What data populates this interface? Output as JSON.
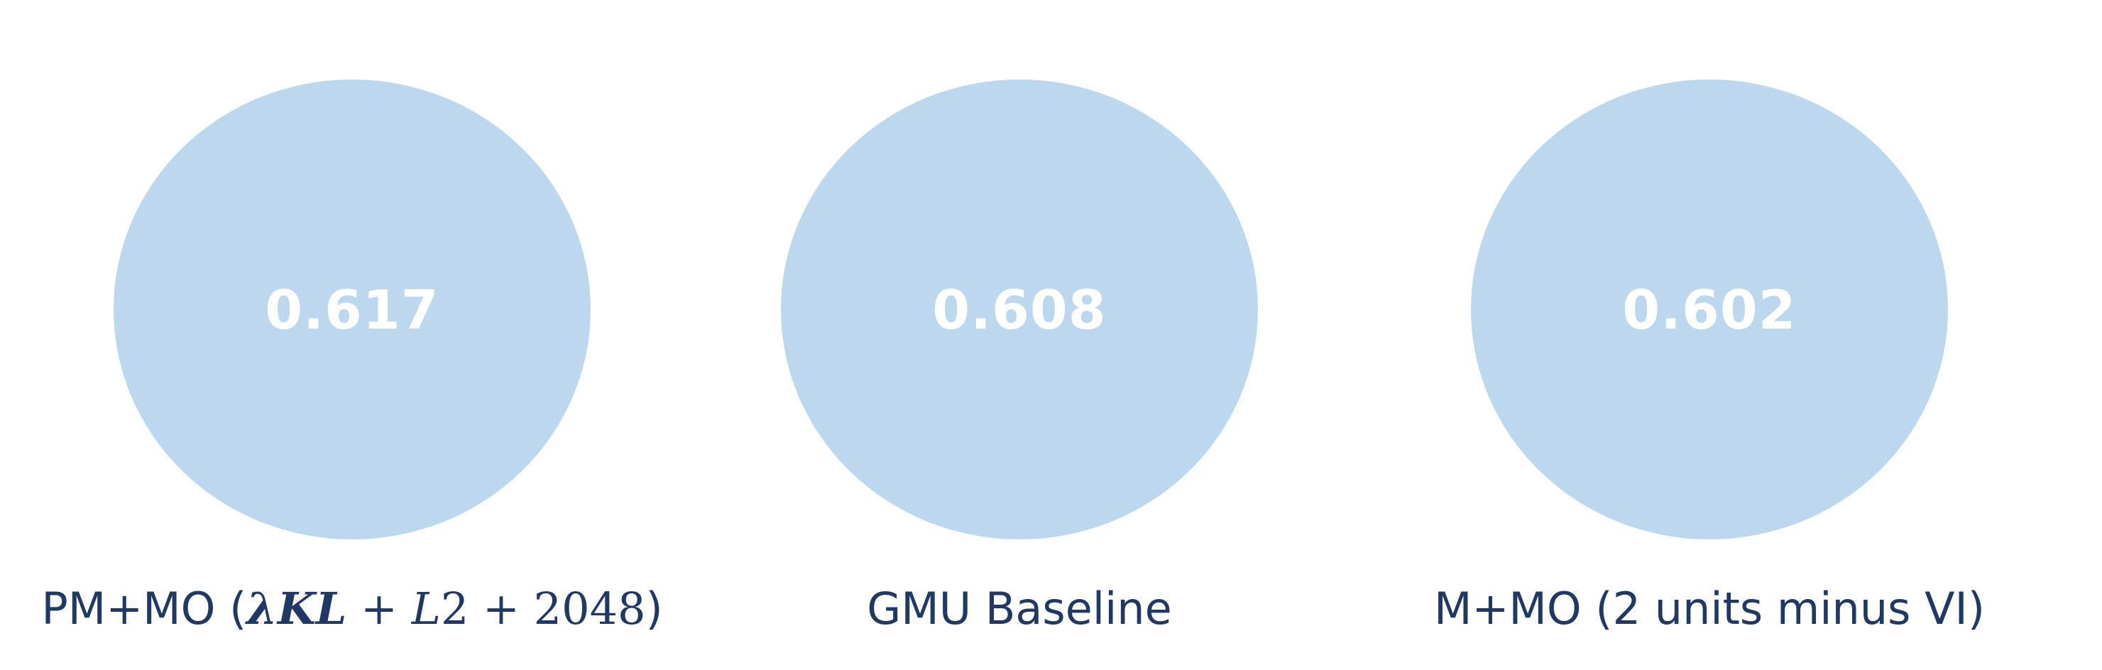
{
  "models": [
    {
      "score": "0.617",
      "label_prefix": "PM+MO (",
      "label_math": "λKL + L2 + 2048",
      "label_suffix": ")"
    },
    {
      "score": "0.608",
      "label": "GMU Baseline"
    },
    {
      "score": "0.602",
      "label": "M+MO (2 units minus VI)"
    }
  ],
  "colors": {
    "bubble": "#bdd7ee",
    "score_text": "#ffffff",
    "caption_text": "#1f3864"
  }
}
